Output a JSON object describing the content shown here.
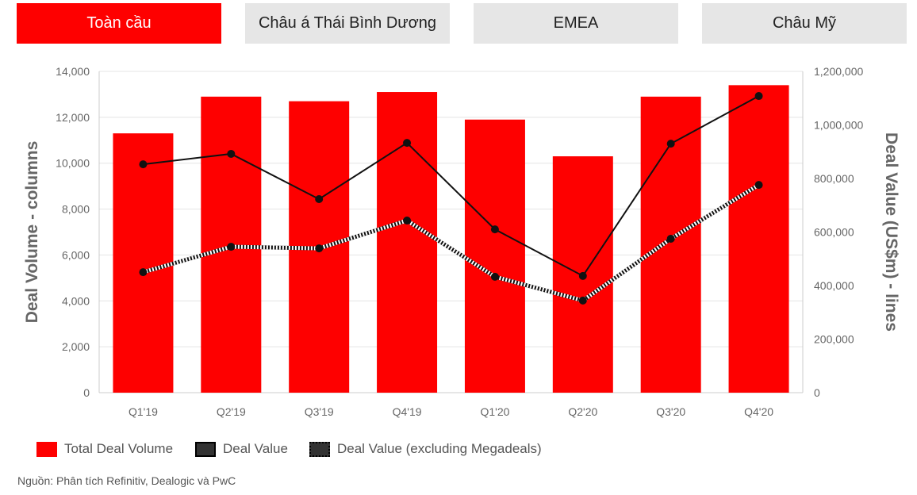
{
  "tabs": [
    {
      "label": "Toàn cầu",
      "active": true
    },
    {
      "label": "Châu á Thái Bình Dương"
    },
    {
      "label": "EMEA"
    },
    {
      "label": "Châu Mỹ"
    }
  ],
  "colors": {
    "accent": "#fe0000",
    "line": "#222222",
    "tab_inactive": "#e6e6e6"
  },
  "chart_data": {
    "type": "bar+line",
    "categories": [
      "Q1'19",
      "Q2'19",
      "Q3'19",
      "Q4'19",
      "Q1'20",
      "Q2'20",
      "Q3'20",
      "Q4'20"
    ],
    "ylabel": "Deal Volume - columns",
    "y2label": "Deal Value (US$m) - lines",
    "ylim": [
      0,
      14000
    ],
    "y2lim": [
      0,
      1200000
    ],
    "yticks": [
      "0",
      "2,000",
      "4,000",
      "6,000",
      "8,000",
      "10,000",
      "12,000",
      "14,000"
    ],
    "y2ticks": [
      "0",
      "200,000",
      "400,000",
      "600,000",
      "800,000",
      "1,000,000",
      "1,200,000"
    ],
    "grid": true,
    "legend_position": "bottom-left",
    "series": [
      {
        "name": "Total Deal Volume",
        "type": "bar",
        "axis": "left",
        "values": [
          11300,
          12900,
          12700,
          13100,
          11900,
          10300,
          12900,
          13400
        ]
      },
      {
        "name": "Deal Value",
        "type": "line",
        "axis": "right",
        "style": "solid",
        "values": [
          853000,
          892000,
          723000,
          933000,
          610000,
          436000,
          930000,
          1108000
        ]
      },
      {
        "name": "Deal Value (excluding Megadeals)",
        "type": "line",
        "axis": "right",
        "style": "dotted",
        "values": [
          450000,
          545000,
          539000,
          643000,
          433000,
          344000,
          575000,
          776000
        ]
      }
    ]
  },
  "source": "Nguồn: Phân tích Refinitiv, Dealogic và PwC"
}
